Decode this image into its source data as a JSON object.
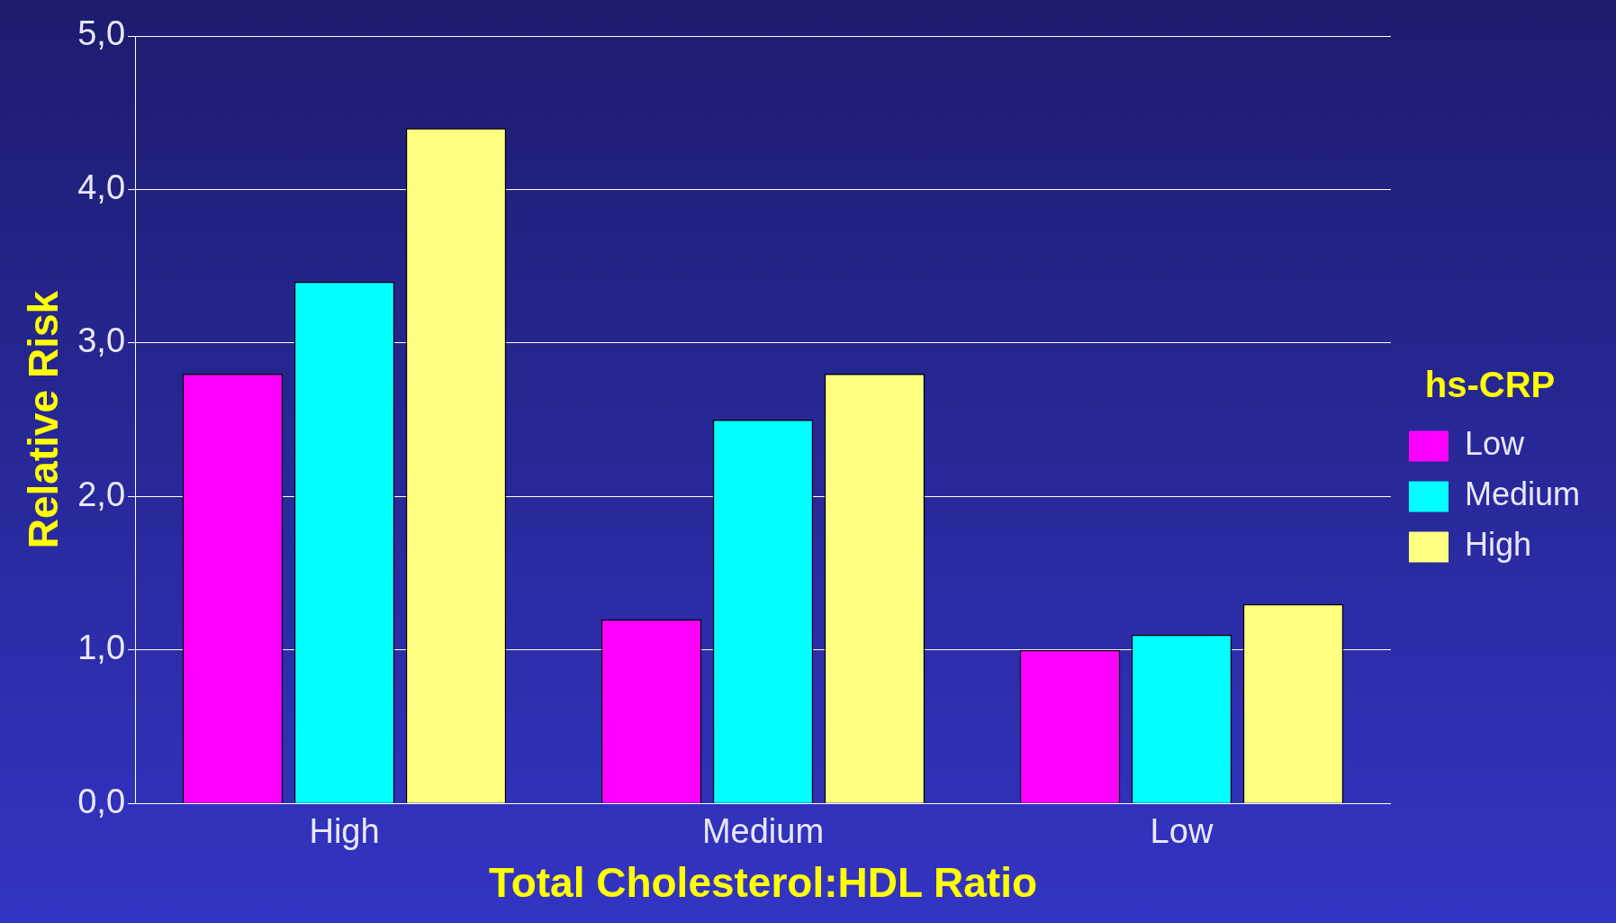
{
  "chart_data": {
    "type": "bar",
    "categories": [
      "High",
      "Medium",
      "Low"
    ],
    "series": [
      {
        "name": "Low",
        "color": "#ff00ff",
        "values": [
          2.8,
          1.2,
          1.0
        ]
      },
      {
        "name": "Medium",
        "color": "#00ffff",
        "values": [
          3.4,
          2.5,
          1.1
        ]
      },
      {
        "name": "High",
        "color": "#ffff80",
        "values": [
          4.4,
          2.8,
          1.3
        ]
      }
    ],
    "xlabel": "Total Cholesterol:HDL Ratio",
    "ylabel": "Relative Risk",
    "legend_title": "hs-CRP",
    "ylim": [
      0,
      5
    ],
    "yticks": [
      {
        "value": 0,
        "label": "0,0"
      },
      {
        "value": 1,
        "label": "1,0"
      },
      {
        "value": 2,
        "label": "2,0"
      },
      {
        "value": 3,
        "label": "3,0"
      },
      {
        "value": 4,
        "label": "4,0"
      },
      {
        "value": 5,
        "label": "5,0"
      }
    ],
    "grid": "y",
    "legend": "right"
  }
}
